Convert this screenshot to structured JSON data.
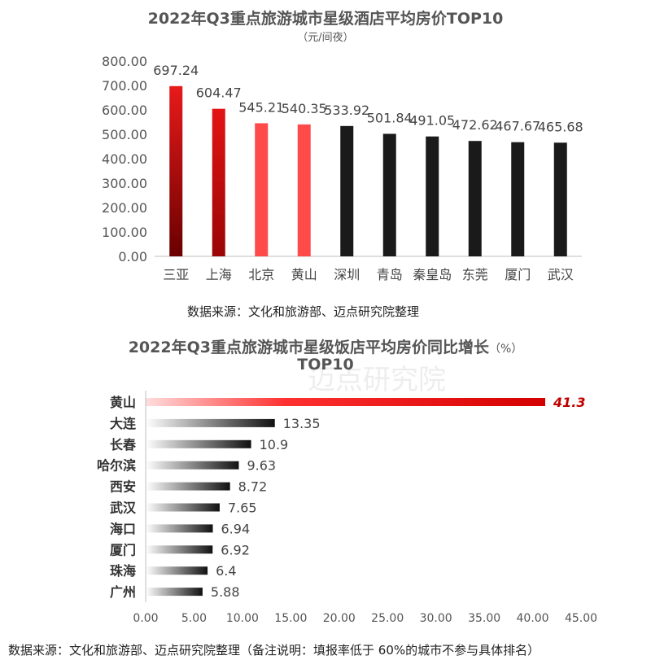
{
  "chart_data": [
    {
      "type": "bar",
      "title": "2022年Q3重点旅游城市星级酒店平均房价TOP10",
      "subtitle": "（元/间夜）",
      "categories": [
        "三亚",
        "上海",
        "北京",
        "黄山",
        "深圳",
        "青岛",
        "秦皇岛",
        "东莞",
        "厦门",
        "武汉"
      ],
      "values": [
        697.24,
        604.47,
        545.21,
        540.35,
        533.92,
        501.84,
        491.05,
        472.62,
        467.67,
        465.68
      ],
      "data_labels": [
        "697.24",
        "604.47",
        "545.21",
        "540.35",
        "533.92",
        "501.84",
        "491.05",
        "472.62",
        "467.67",
        "465.68"
      ],
      "y_ticks": [
        "0.00",
        "100.00",
        "200.00",
        "300.00",
        "400.00",
        "500.00",
        "600.00",
        "700.00",
        "800.00"
      ],
      "ylim": [
        0,
        800
      ],
      "grid": false,
      "source": "数据来源：文化和旅游部、迈点研究院整理",
      "colors": {
        "highlight_top": "#e81a1a",
        "highlight_bottom": "#6a0000",
        "highlight_light": "#ff4a4a",
        "normal": "#1a1a1a"
      },
      "bar_styles": [
        "dark-red-gradient",
        "red-gradient",
        "light-red",
        "light-red",
        "black",
        "black",
        "black",
        "black",
        "black",
        "black"
      ]
    },
    {
      "type": "bar",
      "orientation": "horizontal",
      "title_line1": "2022年Q3重点旅游城市星级饭店平均房价同比增长",
      "title_unit": "（%）",
      "title_line2": "TOP10",
      "categories": [
        "黄山",
        "大连",
        "长春",
        "哈尔滨",
        "西安",
        "武汉",
        "海口",
        "厦门",
        "珠海",
        "广州"
      ],
      "values": [
        41.3,
        13.35,
        10.9,
        9.63,
        8.72,
        7.65,
        6.94,
        6.92,
        6.4,
        5.88
      ],
      "data_labels": [
        "41.3",
        "13.35",
        "10.9",
        "9.63",
        "8.72",
        "7.65",
        "6.94",
        "6.92",
        "6.4",
        "5.88"
      ],
      "x_ticks": [
        "0.00",
        "5.00",
        "10.00",
        "15.00",
        "20.00",
        "25.00",
        "30.00",
        "35.00",
        "40.00",
        "45.00"
      ],
      "xlim": [
        0,
        45
      ],
      "grid": false,
      "source": "数据来源：文化和旅游部、迈点研究院整理（备注说明：填报率低于 60%的城市不参与具体排名）",
      "watermark": "迈点研究院",
      "colors": {
        "highlight": "#d40000",
        "highlight_label": "#c00000",
        "bar_left": "#ffffff",
        "bar_right": "#111111"
      }
    }
  ]
}
